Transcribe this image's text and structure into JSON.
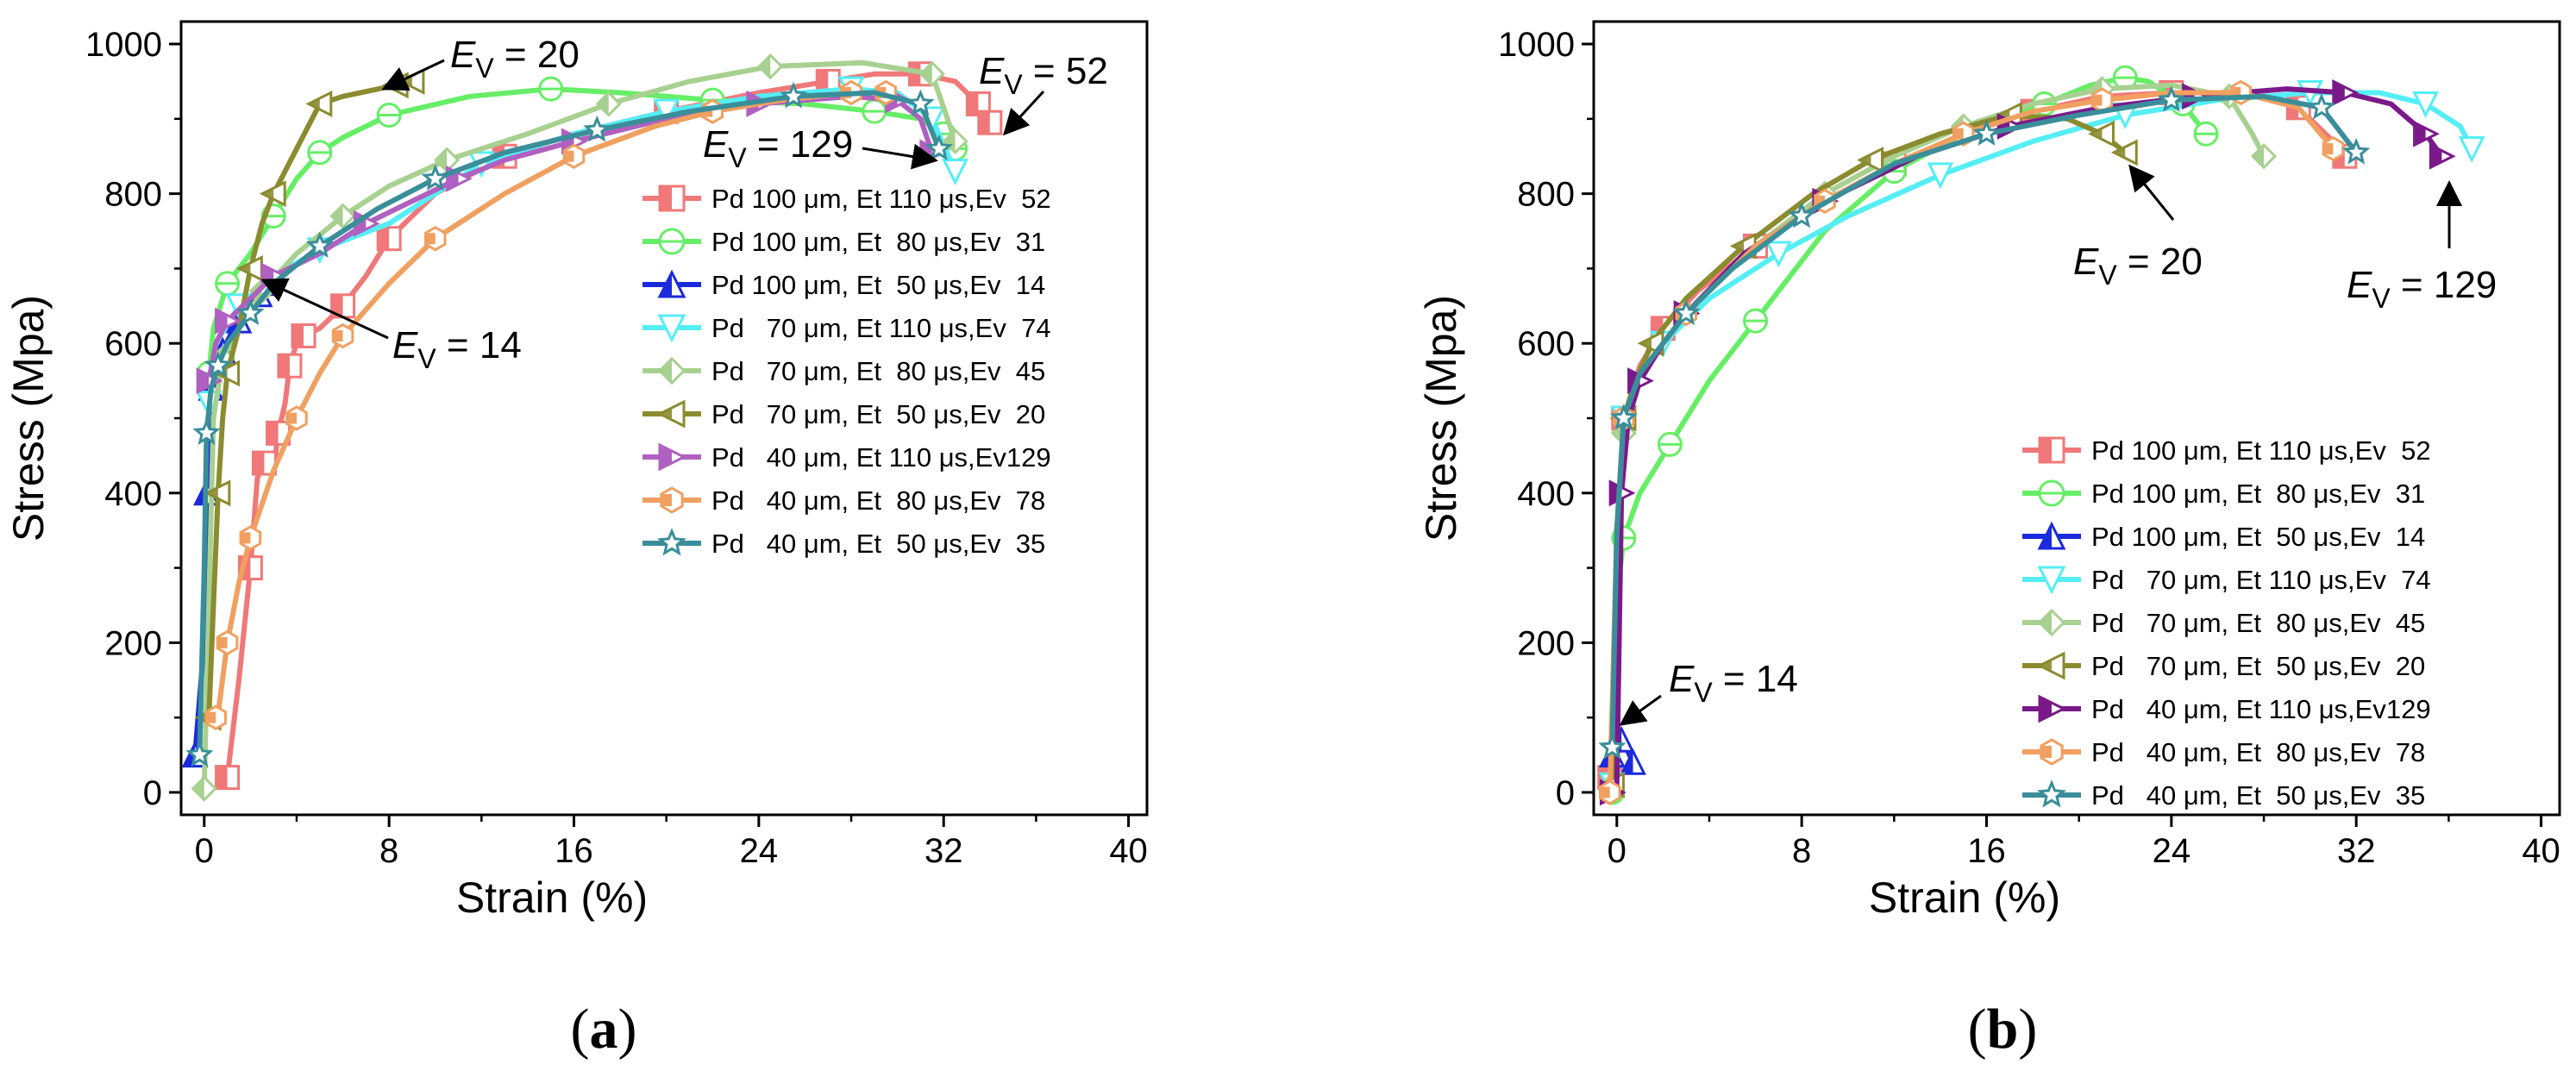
{
  "figure": {
    "panels": [
      {
        "label_open": "(",
        "label_letter": "a",
        "label_close": ")"
      },
      {
        "label_open": "(",
        "label_letter": "b",
        "label_close": ")"
      }
    ]
  },
  "chart_data": [
    {
      "type": "line",
      "panel": "a",
      "xlabel": "Strain (%)",
      "ylabel": "Stress (Mpa)",
      "xlim": [
        -1,
        40.8
      ],
      "ylim": [
        -30,
        1030
      ],
      "xticks": [
        0,
        8,
        16,
        24,
        32,
        40
      ],
      "yticks": [
        0,
        200,
        400,
        600,
        800,
        1000
      ],
      "legend_position": "right-middle",
      "series": [
        {
          "name": "Pd 100 μm, Et 110 μs,Ev  52",
          "color": "#f07878",
          "marker": "square-half",
          "x": [
            1,
            1.5,
            2,
            2.3,
            2.6,
            3,
            3.2,
            3.5,
            3.7,
            4,
            4.3,
            5,
            6,
            7,
            8,
            10,
            13,
            16,
            20,
            24,
            27,
            29,
            31,
            32.5,
            33.5,
            34
          ],
          "y": [
            20,
            150,
            300,
            420,
            440,
            430,
            480,
            520,
            570,
            600,
            610,
            620,
            650,
            690,
            740,
            800,
            850,
            880,
            910,
            935,
            950,
            960,
            960,
            950,
            920,
            895
          ]
        },
        {
          "name": "Pd 100 μm, Et  80 μs,Ev  31",
          "color": "#66ee66",
          "marker": "circle-line",
          "x": [
            0.2,
            0.4,
            1,
            2,
            3,
            4,
            5,
            6,
            8,
            11.5,
            15,
            18,
            22,
            26,
            29,
            31,
            32,
            32.5
          ],
          "y": [
            560,
            620,
            680,
            720,
            770,
            820,
            855,
            875,
            905,
            930,
            940,
            935,
            925,
            920,
            910,
            900,
            880,
            860
          ]
        },
        {
          "name": "Pd 100 μm, Et  50 μs,Ev  14",
          "color": "#1a2adc",
          "marker": "triangle-up",
          "x": [
            -0.4,
            0,
            0.1,
            0.2,
            0.3,
            0.5,
            0.8,
            1.2,
            1.5,
            2,
            2.4,
            2.8
          ],
          "y": [
            50,
            200,
            400,
            500,
            540,
            560,
            590,
            615,
            630,
            650,
            665,
            680
          ]
        },
        {
          "name": "Pd   70 μm, Et 110 μs,Ev  74",
          "color": "#55eef5",
          "marker": "triangle-down",
          "x": [
            0.2,
            0.5,
            1.5,
            3,
            5,
            8,
            12,
            16,
            20,
            24,
            28,
            30,
            31.5,
            32.5
          ],
          "y": [
            520,
            600,
            650,
            690,
            725,
            760,
            840,
            880,
            910,
            930,
            940,
            935,
            900,
            830
          ]
        },
        {
          "name": "Pd   70 μm, Et  80 μs,Ev  45",
          "color": "#a8d090",
          "marker": "diamond-half",
          "x": [
            0,
            0.4,
            0.8,
            1.5,
            2.5,
            4,
            6,
            8,
            10.5,
            14,
            17.5,
            21,
            24.5,
            28.5,
            31.5,
            32.5
          ],
          "y": [
            5,
            500,
            580,
            620,
            670,
            720,
            770,
            810,
            845,
            880,
            920,
            950,
            970,
            975,
            960,
            870
          ]
        },
        {
          "name": "Pd   70 μm, Et  50 μs,Ev  20",
          "color": "#8b8b30",
          "marker": "triangle-left",
          "x": [
            0.2,
            0.4,
            0.6,
            0.8,
            1,
            1.5,
            2,
            2.5,
            3,
            4,
            5,
            6,
            8.3,
            9
          ],
          "y": [
            100,
            250,
            400,
            500,
            560,
            620,
            700,
            760,
            800,
            860,
            920,
            930,
            945,
            950
          ]
        },
        {
          "name": "Pd   40 μm, Et 110 μs,Ev129",
          "color": "#b060c0",
          "marker": "triangle-right",
          "x": [
            0.2,
            0.5,
            1,
            2,
            3,
            5,
            7,
            9,
            11,
            13,
            16,
            20,
            24,
            28,
            30,
            31,
            31.5
          ],
          "y": [
            550,
            600,
            630,
            660,
            690,
            720,
            760,
            790,
            820,
            845,
            870,
            900,
            920,
            930,
            925,
            900,
            855
          ]
        },
        {
          "name": "Pd   40 μm, Et  80 μs,Ev  78",
          "color": "#f0a060",
          "marker": "hexagon-half",
          "x": [
            0.5,
            0.6,
            1,
            1.5,
            2,
            3,
            4,
            5,
            6,
            8,
            10,
            13,
            16,
            19.5,
            22,
            25,
            28,
            29.5
          ],
          "y": [
            100,
            105,
            200,
            280,
            340,
            430,
            500,
            560,
            610,
            680,
            740,
            800,
            850,
            890,
            910,
            925,
            935,
            935
          ]
        },
        {
          "name": "Pd   40 μm, Et  50 μs,Ev  35",
          "color": "#3a8e9a",
          "marker": "star",
          "x": [
            -0.2,
            0,
            0.1,
            0.3,
            0.6,
            1,
            2,
            3,
            5,
            7.5,
            10,
            13,
            17,
            21,
            25.5,
            29,
            31,
            31.8
          ],
          "y": [
            50,
            300,
            480,
            540,
            570,
            600,
            640,
            680,
            730,
            780,
            820,
            855,
            885,
            910,
            930,
            935,
            920,
            860
          ]
        }
      ],
      "annotations": [
        {
          "main": "E",
          "sub": "V",
          "rest": " = 20",
          "x": 11,
          "y": 990
        },
        {
          "main": "E",
          "sub": "V",
          "rest": " = 52",
          "x": 33.6,
          "y": 955
        },
        {
          "main": "E",
          "sub": "V",
          "rest": " = 129",
          "x": 21.5,
          "y": 875
        },
        {
          "main": "E",
          "sub": "V",
          "rest": " = 14",
          "x": 8.3,
          "y": 595
        }
      ]
    },
    {
      "type": "line",
      "panel": "b",
      "xlabel": "Strain (%)",
      "ylabel": "Stress (Mpa)",
      "xlim": [
        -1,
        40.8
      ],
      "ylim": [
        -30,
        1030
      ],
      "xticks": [
        0,
        8,
        16,
        24,
        32,
        40
      ],
      "yticks": [
        0,
        200,
        400,
        600,
        800,
        1000
      ],
      "legend_position": "bottom-right",
      "series": [
        {
          "name": "Pd 100 μm, Et 110 μs,Ev  52",
          "color": "#f07878",
          "marker": "square-half",
          "x": [
            -0.3,
            0,
            0.3,
            1,
            2,
            3.5,
            6,
            9,
            12,
            15,
            18,
            21,
            24,
            27,
            29.5,
            31,
            31.5
          ],
          "y": [
            20,
            300,
            500,
            570,
            620,
            670,
            730,
            790,
            840,
            880,
            910,
            930,
            935,
            935,
            915,
            870,
            850
          ]
        },
        {
          "name": "Pd 100 μm, Et  80 μs,Ev  31",
          "color": "#66ee66",
          "marker": "circle-line",
          "x": [
            -0.2,
            0,
            0.3,
            1,
            2.3,
            4,
            6,
            9,
            12,
            15,
            18.5,
            20.5,
            22,
            23,
            24.5,
            25.5
          ],
          "y": [
            0,
            260,
            340,
            400,
            465,
            550,
            630,
            750,
            830,
            880,
            920,
            945,
            955,
            950,
            920,
            880
          ]
        },
        {
          "name": "Pd 100 μm, Et  50 μs,Ev  14",
          "color": "#1a2adc",
          "marker": "triangle-up",
          "x": [
            -0.2,
            0,
            0.2,
            0.4,
            0.7
          ],
          "y": [
            50,
            80,
            70,
            60,
            40
          ]
        },
        {
          "name": "Pd   70 μm, Et 110 μs,Ev  74",
          "color": "#55eef5",
          "marker": "triangle-down",
          "x": [
            -0.2,
            0,
            0.3,
            1,
            2,
            4,
            7,
            10,
            14,
            18,
            22,
            26,
            30,
            33,
            35,
            36.5,
            37
          ],
          "y": [
            10,
            350,
            500,
            560,
            600,
            660,
            720,
            770,
            825,
            870,
            905,
            925,
            935,
            935,
            920,
            890,
            860
          ]
        },
        {
          "name": "Pd   70 μm, Et  80 μs,Ev  45",
          "color": "#a8d090",
          "marker": "diamond-half",
          "x": [
            -0.2,
            0,
            0.3,
            1,
            3,
            6,
            9,
            12,
            15,
            18,
            21,
            24,
            26.5,
            27.5,
            28
          ],
          "y": [
            10,
            300,
            480,
            560,
            640,
            730,
            800,
            850,
            890,
            920,
            940,
            945,
            930,
            880,
            850
          ]
        },
        {
          "name": "Pd   70 μm, Et  50 μs,Ev  20",
          "color": "#8b8b30",
          "marker": "triangle-left",
          "x": [
            -0.2,
            0,
            0.3,
            0.7,
            1.5,
            3,
            5.5,
            8.5,
            11,
            14,
            17,
            19.5,
            21,
            22
          ],
          "y": [
            10,
            350,
            500,
            540,
            600,
            660,
            730,
            800,
            845,
            880,
            905,
            900,
            880,
            855
          ]
        },
        {
          "name": "Pd   40 μm, Et 110 μs,Ev129",
          "color": "#7a1a8a",
          "marker": "triangle-right",
          "x": [
            -0.2,
            0,
            0.2,
            0.5,
            1,
            2,
            3,
            5.5,
            9,
            13,
            17,
            21,
            25,
            29,
            31.5,
            33.5,
            35,
            35.7
          ],
          "y": [
            0,
            10,
            400,
            500,
            550,
            600,
            640,
            720,
            790,
            850,
            890,
            915,
            930,
            940,
            935,
            920,
            880,
            850
          ]
        },
        {
          "name": "Pd   40 μm, Et  80 μs,Ev  78",
          "color": "#f0a060",
          "marker": "hexagon-half",
          "x": [
            -0.3,
            0,
            0.3,
            1,
            3,
            6,
            9,
            12,
            15,
            18,
            21,
            24,
            27,
            29.5,
            31
          ],
          "y": [
            0,
            350,
            500,
            560,
            640,
            730,
            790,
            840,
            880,
            910,
            925,
            935,
            935,
            915,
            860
          ]
        },
        {
          "name": "Pd   40 μm, Et  50 μs,Ev  35",
          "color": "#3a8e9a",
          "marker": "star",
          "x": [
            -0.2,
            0,
            0.3,
            1,
            3,
            5,
            8,
            12,
            16,
            20,
            24,
            28,
            30.5,
            32
          ],
          "y": [
            60,
            350,
            500,
            560,
            640,
            700,
            770,
            840,
            880,
            905,
            925,
            930,
            915,
            855
          ]
        }
      ],
      "annotations": [
        {
          "main": "E",
          "sub": "V",
          "rest": " = 20",
          "x": 19,
          "y": 720
        },
        {
          "main": "E",
          "sub": "V",
          "rest": " = 129",
          "x": 30.8,
          "y": 690
        },
        {
          "main": "E",
          "sub": "V",
          "rest": " = 14",
          "x": 2.3,
          "y": 150
        }
      ]
    }
  ]
}
